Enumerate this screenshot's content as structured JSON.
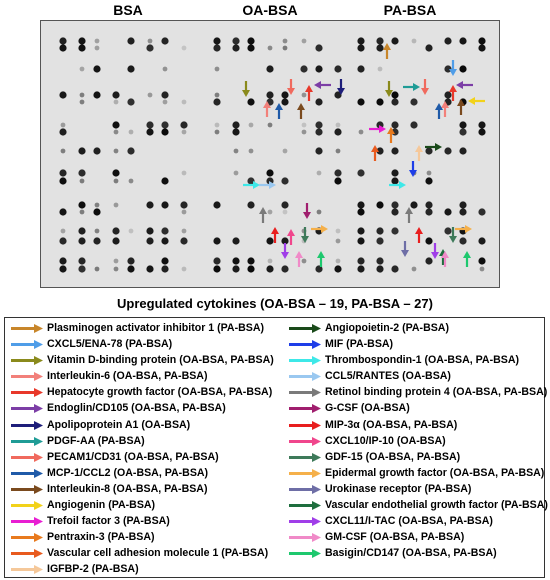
{
  "column_titles": [
    "BSA",
    "OA-BSA",
    "PA-BSA"
  ],
  "heading": "Upregulated cytokines (OA-BSA – 19, PA-BSA – 27)",
  "legend_left": [
    {
      "label": "Plasminogen activator inhibitor 1 (PA-BSA)",
      "color": "#c8862a"
    },
    {
      "label": "CXCL5/ENA-78 (PA-BSA)",
      "color": "#4f9de8"
    },
    {
      "label": "Vitamin D-binding protein (OA-BSA, PA-BSA)",
      "color": "#8a8a1c"
    },
    {
      "label": "Interleukin-6 (OA-BSA, PA-BSA)",
      "color": "#f2807a"
    },
    {
      "label": "Hepatocyte growth factor (OA-BSA, PA-BSA)",
      "color": "#e8382a"
    },
    {
      "label": "Endoglin/CD105 (OA-BSA, PA-BSA)",
      "color": "#7c3ea6"
    },
    {
      "label": "Apolipoprotein A1 (OA-BSA)",
      "color": "#1e1e7a"
    },
    {
      "label": "PDGF-AA (PA-BSA)",
      "color": "#1f9c96"
    },
    {
      "label": "PECAM1/CD31 (OA-BSA, PA-BSA)",
      "color": "#f06a5e"
    },
    {
      "label": "MCP-1/CCL2 (OA-BSA, PA-BSA)",
      "color": "#1f5aa8"
    },
    {
      "label": "Interleukin-8 (OA-BSA, PA-BSA)",
      "color": "#7a4a1e"
    },
    {
      "label": "Angiogenin (PA-BSA)",
      "color": "#f2d21a"
    },
    {
      "label": "Trefoil factor 3 (PA-BSA)",
      "color": "#e81ed2"
    },
    {
      "label": "Pentraxin-3 (PA-BSA)",
      "color": "#e87a1e"
    },
    {
      "label": "Vascular cell adhesion molecule 1 (PA-BSA)",
      "color": "#e85a1e"
    },
    {
      "label": "IGFBP-2 (PA-BSA)",
      "color": "#f5c89a"
    }
  ],
  "legend_right": [
    {
      "label": "Angiopoietin-2 (PA-BSA)",
      "color": "#1a4a1a"
    },
    {
      "label": "MIF (PA-BSA)",
      "color": "#1e3ee8"
    },
    {
      "label": "Thrombospondin-1 (OA-BSA, PA-BSA)",
      "color": "#3ee8e8"
    },
    {
      "label": "CCL5/RANTES (OA-BSA)",
      "color": "#9ac8f0"
    },
    {
      "label": "Retinol binding protein 4 (OA-BSA, PA-BSA)",
      "color": "#7a7a7a"
    },
    {
      "label": "G-CSF (OA-BSA)",
      "color": "#a01e6e"
    },
    {
      "label": "MIP-3α (OA-BSA, PA-BSA)",
      "color": "#e81e1e"
    },
    {
      "label": "CXCL10/IP-10 (OA-BSA)",
      "color": "#f0468c"
    },
    {
      "label": "GDF-15 (OA-BSA, PA-BSA)",
      "color": "#3e7a5a"
    },
    {
      "label": "Epidermal growth factor (OA-BSA, PA-BSA)",
      "color": "#f5b04a"
    },
    {
      "label": "Urokinase receptor (PA-BSA)",
      "color": "#6e6ea6"
    },
    {
      "label": "Vascular endothelial growth factor (PA-BSA)",
      "color": "#1e6e3e"
    },
    {
      "label": "CXCL11/I-TAC (OA-BSA, PA-BSA)",
      "color": "#a03ee8"
    },
    {
      "label": "GM-CSF (OA-BSA, PA-BSA)",
      "color": "#f08ac8"
    },
    {
      "label": "Basigin/CD147 (OA-BSA, PA-BSA)",
      "color": "#1ec86e"
    }
  ]
}
